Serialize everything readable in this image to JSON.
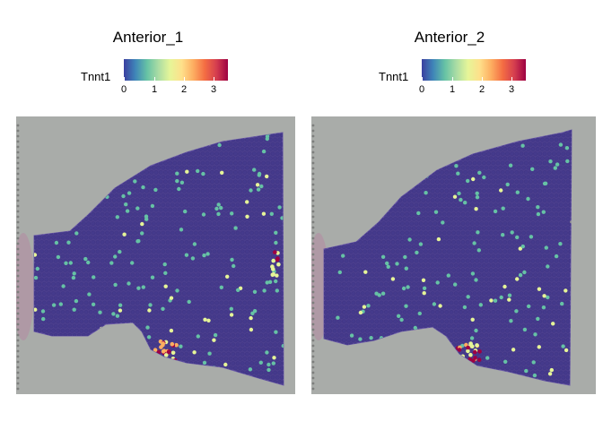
{
  "panels": [
    {
      "title": "Anterior_1",
      "legend": {
        "label": "Tnnt1",
        "ticks": [
          "0",
          "1",
          "2",
          "3"
        ]
      },
      "colors": {
        "background": "#a9aca9",
        "tissue": "#4b3e8e",
        "low": "#66c2a5",
        "mid": "#e6f598",
        "high": "#9e0142"
      }
    },
    {
      "title": "Anterior_2",
      "legend": {
        "label": "Tnnt1",
        "ticks": [
          "0",
          "1",
          "2",
          "3"
        ]
      },
      "colors": {
        "background": "#a9aca9",
        "tissue": "#4b3e8e",
        "low": "#66c2a5",
        "mid": "#e6f598",
        "high": "#9e0142"
      }
    }
  ]
}
